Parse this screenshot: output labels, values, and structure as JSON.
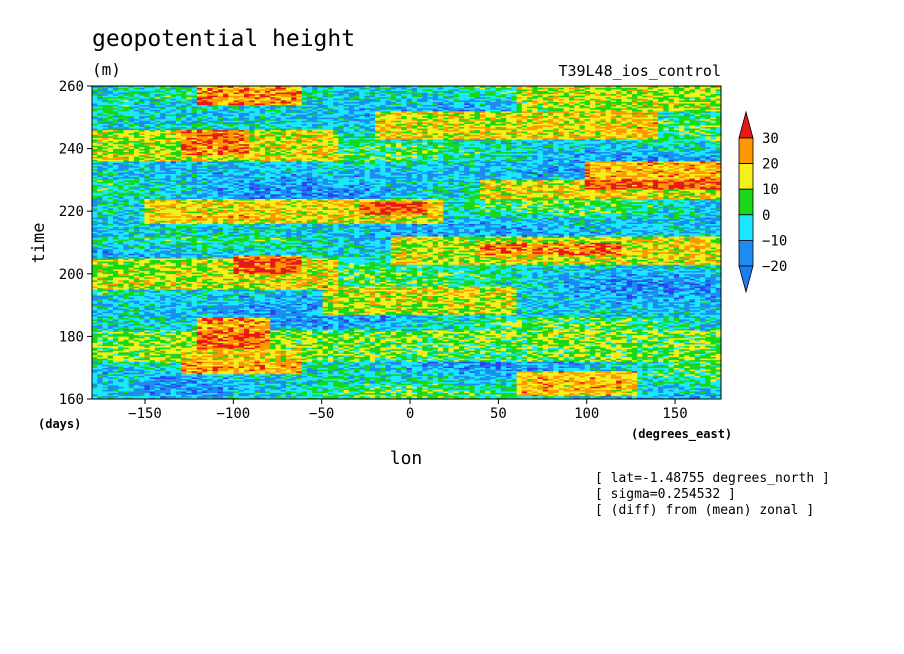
{
  "chart_data": {
    "type": "heatmap",
    "title": "geopotential height",
    "units": "(m)",
    "run_label": "T39L48_ios_control",
    "xlabel": "lon",
    "xunits": "(degrees_east)",
    "ylabel": "time",
    "yunits": "(days)",
    "xlim": [
      -180,
      176
    ],
    "ylim": [
      160,
      260
    ],
    "xticks": [
      -150,
      -100,
      -50,
      0,
      50,
      100,
      150
    ],
    "yticks": [
      160,
      180,
      200,
      220,
      240,
      260
    ],
    "colorbar": {
      "levels": [
        30,
        20,
        10,
        0,
        -10,
        -20
      ],
      "colors": [
        "#e81818",
        "#ff9800",
        "#f5ef1a",
        "#18d818",
        "#1ae8ff",
        "#1c8cf0",
        "#2a44f0"
      ],
      "triangle_top_color": "#e81818",
      "triangle_bottom_color": "#1c7cf0"
    },
    "field_bands": [
      {
        "t0": 160,
        "t1": 168,
        "x0": -180,
        "x1": -150,
        "value": -15
      },
      {
        "t0": 161,
        "t1": 169,
        "x0": 60,
        "x1": 130,
        "value": 25
      },
      {
        "t0": 168,
        "t1": 176,
        "x0": -130,
        "x1": -60,
        "value": 25
      },
      {
        "t0": 172,
        "t1": 182,
        "x0": -180,
        "x1": 176,
        "value": 5
      },
      {
        "t0": 176,
        "t1": 186,
        "x0": -120,
        "x1": -80,
        "value": 30
      },
      {
        "t0": 186,
        "t1": 193,
        "x0": -180,
        "x1": 176,
        "value": -20
      },
      {
        "t0": 187,
        "t1": 196,
        "x0": -50,
        "x1": 60,
        "value": 15
      },
      {
        "t0": 195,
        "t1": 205,
        "x0": -180,
        "x1": -40,
        "value": 15
      },
      {
        "t0": 200,
        "t1": 206,
        "x0": -100,
        "x1": -60,
        "value": 30
      },
      {
        "t0": 203,
        "t1": 212,
        "x0": -10,
        "x1": 176,
        "value": 15
      },
      {
        "t0": 206,
        "t1": 210,
        "x0": 40,
        "x1": 120,
        "value": 25
      },
      {
        "t0": 212,
        "t1": 218,
        "x0": -180,
        "x1": 176,
        "value": -20
      },
      {
        "t0": 216,
        "t1": 224,
        "x0": -150,
        "x1": 20,
        "value": 20
      },
      {
        "t0": 219,
        "t1": 223,
        "x0": -30,
        "x1": 10,
        "value": 30
      },
      {
        "t0": 224,
        "t1": 230,
        "x0": 40,
        "x1": 176,
        "value": 15
      },
      {
        "t0": 227,
        "t1": 236,
        "x0": 100,
        "x1": 176,
        "value": 30
      },
      {
        "t0": 230,
        "t1": 236,
        "x0": -180,
        "x1": 80,
        "value": -20
      },
      {
        "t0": 236,
        "t1": 246,
        "x0": -180,
        "x1": -40,
        "value": 15
      },
      {
        "t0": 238,
        "t1": 246,
        "x0": -130,
        "x1": -90,
        "value": 25
      },
      {
        "t0": 243,
        "t1": 252,
        "x0": -20,
        "x1": 140,
        "value": 20
      },
      {
        "t0": 248,
        "t1": 256,
        "x0": -160,
        "x1": -20,
        "value": -20
      },
      {
        "t0": 254,
        "t1": 260,
        "x0": -120,
        "x1": -60,
        "value": 30
      },
      {
        "t0": 252,
        "t1": 260,
        "x0": 60,
        "x1": 176,
        "value": 10
      }
    ]
  },
  "annotations": [
    "[ lat=-1.48755 degrees_north ]",
    "[ sigma=0.254532 ]",
    "[ (diff) from (mean) zonal ]"
  ]
}
